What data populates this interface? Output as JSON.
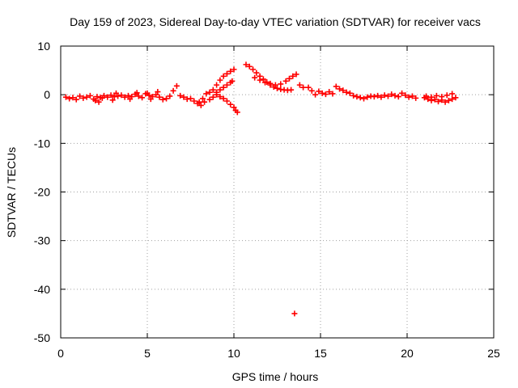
{
  "chart_data": {
    "type": "scatter",
    "title": "Day 159 of 2023, Sidereal Day-to-day VTEC variation (SDTVAR) for receiver vacs",
    "xlabel": "GPS time / hours",
    "ylabel": "SDTVAR / TECUs",
    "xlim": [
      0,
      25
    ],
    "ylim": [
      -50,
      10
    ],
    "xticks": [
      0,
      5,
      10,
      15,
      20,
      25
    ],
    "xtick_labels": [
      "0",
      "5",
      "10",
      "15",
      "20",
      "25"
    ],
    "yticks": [
      10,
      0,
      -10,
      -20,
      -30,
      -40,
      -50
    ],
    "ytick_labels": [
      "10",
      "0",
      "-10",
      "-20",
      "-30",
      "-40",
      "-50"
    ],
    "grid": true,
    "marker": "plus",
    "color": "#ff0000",
    "series": [
      {
        "name": "SDTVAR",
        "x": [
          0.3,
          0.5,
          0.7,
          0.9,
          1.1,
          1.3,
          1.5,
          1.7,
          1.9,
          2.1,
          2.3,
          2.5,
          2.7,
          2.9,
          3.1,
          3.3,
          3.5,
          3.7,
          3.9,
          4.1,
          4.3,
          4.5,
          4.7,
          4.9,
          5.1,
          5.3,
          5.5,
          5.7,
          5.9,
          6.1,
          6.3,
          6.5,
          6.7,
          2.0,
          2.2,
          2.4,
          3.0,
          3.2,
          4.0,
          4.4,
          5.0,
          5.2,
          5.6,
          6.9,
          7.1,
          7.3,
          7.5,
          7.7,
          7.9,
          8.1,
          8.3,
          8.0,
          8.2,
          8.4,
          8.6,
          8.8,
          9.0,
          9.2,
          9.4,
          9.6,
          9.8,
          10.0,
          8.6,
          8.8,
          9.0,
          9.2,
          9.4,
          9.6,
          9.8,
          10.0,
          10.1,
          10.2,
          9.0,
          9.2,
          9.4,
          9.6,
          9.8,
          9.9,
          10.7,
          10.9,
          11.1,
          11.3,
          11.5,
          11.7,
          11.9,
          12.1,
          12.3,
          12.5,
          12.7,
          12.9,
          13.1,
          13.3,
          11.2,
          11.5,
          11.8,
          12.1,
          12.4,
          12.7,
          13.0,
          13.2,
          13.4,
          13.6,
          13.8,
          14.0,
          14.3,
          14.5,
          14.7,
          14.9,
          15.1,
          15.3,
          15.5,
          15.7,
          15.9,
          16.1,
          16.3,
          16.5,
          16.7,
          16.9,
          17.1,
          17.3,
          17.5,
          17.7,
          17.9,
          18.1,
          18.3,
          18.5,
          18.7,
          18.9,
          19.1,
          19.3,
          19.5,
          19.7,
          19.9,
          20.1,
          20.3,
          20.5,
          21.0,
          21.2,
          21.4,
          21.6,
          21.8,
          22.0,
          22.2,
          22.4,
          22.6,
          22.8,
          21.1,
          21.4,
          21.7,
          22.0,
          22.3,
          22.6,
          13.5
        ],
        "y": [
          -0.5,
          -0.8,
          -0.6,
          -1.0,
          -0.3,
          -0.7,
          -0.5,
          -0.2,
          -0.9,
          -0.4,
          -0.6,
          -0.2,
          -0.5,
          -0.1,
          -0.4,
          -0.3,
          -0.1,
          -0.5,
          -0.2,
          -0.4,
          0.1,
          -0.3,
          -0.6,
          0.2,
          -0.1,
          -0.4,
          0.0,
          -0.5,
          -1.0,
          -0.8,
          -0.3,
          0.8,
          1.8,
          -1.2,
          -1.5,
          -0.7,
          -1.1,
          0.3,
          -0.9,
          0.4,
          0.3,
          -0.9,
          0.6,
          -0.2,
          -0.5,
          -0.9,
          -0.8,
          -1.3,
          -1.8,
          -2.2,
          -1.5,
          -1.5,
          -0.8,
          0.2,
          0.5,
          1.0,
          2.0,
          3.0,
          3.8,
          4.3,
          4.8,
          5.2,
          -1.0,
          -0.5,
          0.0,
          -0.4,
          -0.8,
          -1.3,
          -2.0,
          -2.6,
          -3.2,
          -3.6,
          0.5,
          1.0,
          1.5,
          2.0,
          2.5,
          2.8,
          6.2,
          5.8,
          5.2,
          4.5,
          3.8,
          3.2,
          2.6,
          2.0,
          1.6,
          1.3,
          1.1,
          1.0,
          0.9,
          1.0,
          3.5,
          3.0,
          2.5,
          2.3,
          2.0,
          2.2,
          2.8,
          3.3,
          3.8,
          4.2,
          2.0,
          1.5,
          1.5,
          0.8,
          0.0,
          0.7,
          0.3,
          0.1,
          0.6,
          0.2,
          1.7,
          1.2,
          0.9,
          0.5,
          0.3,
          -0.2,
          -0.4,
          -0.6,
          -0.8,
          -0.5,
          -0.3,
          -0.4,
          -0.2,
          -0.5,
          -0.1,
          -0.3,
          0.1,
          -0.2,
          -0.4,
          0.3,
          -0.1,
          -0.5,
          -0.3,
          -0.7,
          -0.6,
          -0.9,
          -1.2,
          -1.0,
          -1.4,
          -1.1,
          -1.5,
          -1.2,
          -0.9,
          -0.6,
          -0.3,
          -0.5,
          -0.2,
          -0.4,
          -0.1,
          0.2,
          -45.0
        ]
      }
    ]
  }
}
